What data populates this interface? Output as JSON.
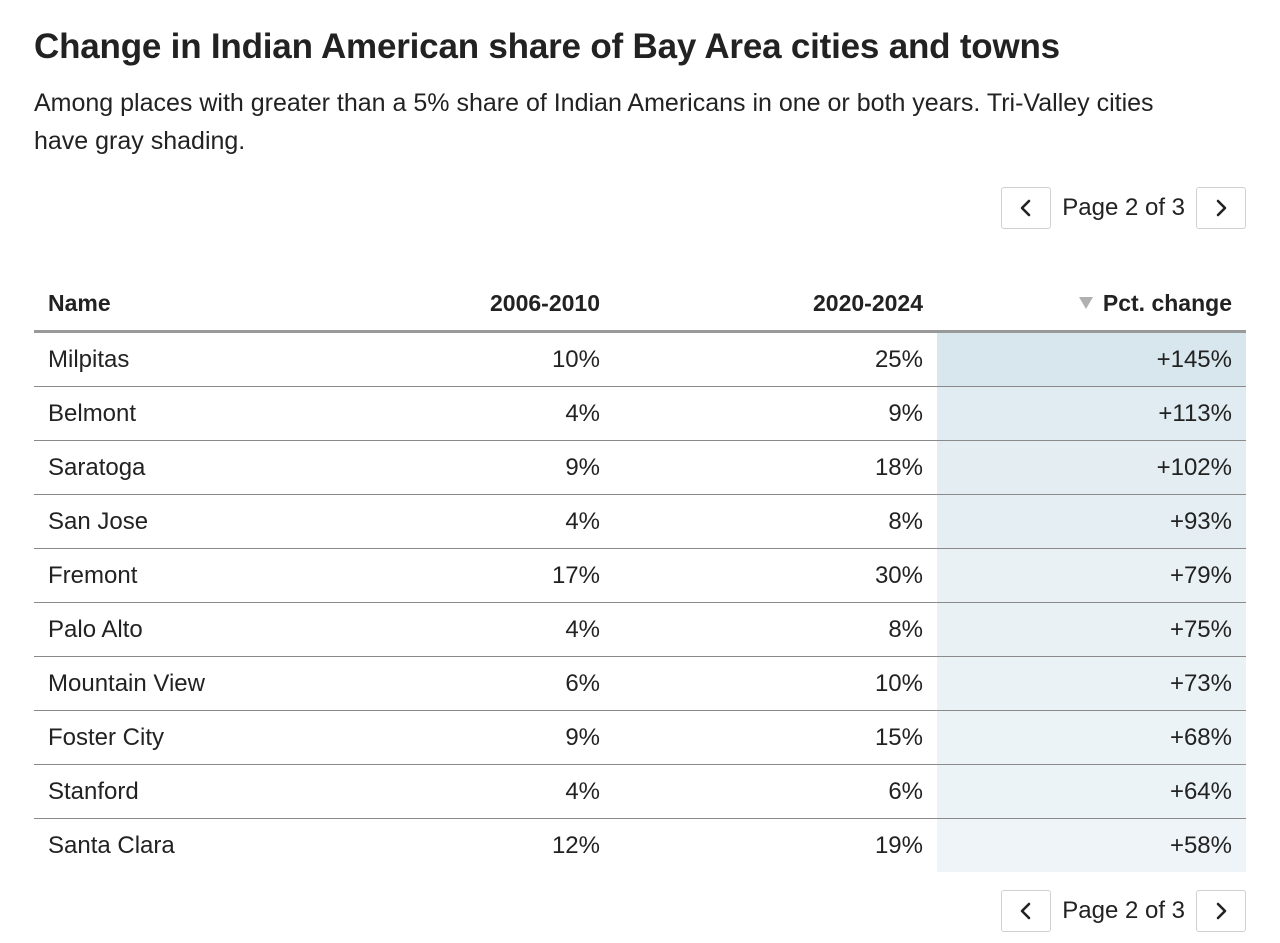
{
  "title": "Change in Indian American share of Bay Area cities and towns",
  "subtitle": "Among places with greater than a 5% share of Indian Americans in one or both years. Tri-Valley cities have gray shading.",
  "pager": {
    "label": "Page 2 of 3"
  },
  "icons": {
    "prev": "chevron-left-icon",
    "next": "chevron-right-icon",
    "sort": "sort-descending-icon"
  },
  "colors": {
    "heat_max": "#d8e7ed",
    "heat_min": "#eef4f7",
    "text": "#222222",
    "rule": "#999999"
  },
  "chart_data": {
    "type": "table",
    "sorted_by": "Pct. change",
    "sort_order": "descending",
    "columns": [
      "Name",
      "2006-2010",
      "2020-2024",
      "Pct. change"
    ],
    "rows": [
      {
        "name": "Milpitas",
        "y2010": "10%",
        "y2024": "25%",
        "change": "+145%",
        "change_value": 145
      },
      {
        "name": "Belmont",
        "y2010": "4%",
        "y2024": "9%",
        "change": "+113%",
        "change_value": 113
      },
      {
        "name": "Saratoga",
        "y2010": "9%",
        "y2024": "18%",
        "change": "+102%",
        "change_value": 102
      },
      {
        "name": "San Jose",
        "y2010": "4%",
        "y2024": "8%",
        "change": "+93%",
        "change_value": 93
      },
      {
        "name": "Fremont",
        "y2010": "17%",
        "y2024": "30%",
        "change": "+79%",
        "change_value": 79
      },
      {
        "name": "Palo Alto",
        "y2010": "4%",
        "y2024": "8%",
        "change": "+75%",
        "change_value": 75
      },
      {
        "name": "Mountain View",
        "y2010": "6%",
        "y2024": "10%",
        "change": "+73%",
        "change_value": 73
      },
      {
        "name": "Foster City",
        "y2010": "9%",
        "y2024": "15%",
        "change": "+68%",
        "change_value": 68
      },
      {
        "name": "Stanford",
        "y2010": "4%",
        "y2024": "6%",
        "change": "+64%",
        "change_value": 64
      },
      {
        "name": "Santa Clara",
        "y2010": "12%",
        "y2024": "19%",
        "change": "+58%",
        "change_value": 58
      }
    ]
  }
}
